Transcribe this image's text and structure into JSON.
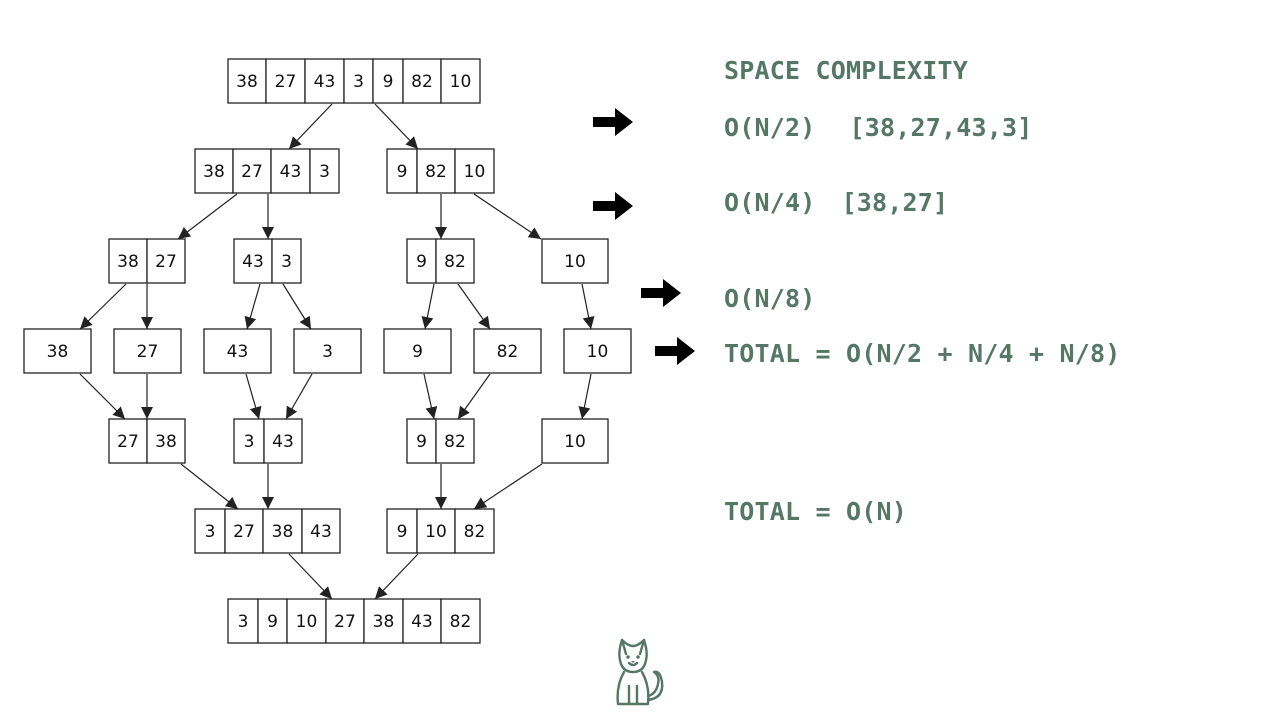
{
  "merge_sort_tree": {
    "rows": [
      {
        "nodes": [
          {
            "values": [
              "38",
              "27",
              "43",
              "3",
              "9",
              "82",
              "10"
            ]
          }
        ]
      },
      {
        "nodes": [
          {
            "values": [
              "38",
              "27",
              "43",
              "3"
            ]
          },
          {
            "values": [
              "9",
              "82",
              "10"
            ]
          }
        ]
      },
      {
        "nodes": [
          {
            "values": [
              "38",
              "27"
            ]
          },
          {
            "values": [
              "43",
              "3"
            ]
          },
          {
            "values": [
              "9",
              "82"
            ]
          },
          {
            "values": [
              "10"
            ]
          }
        ]
      },
      {
        "nodes": [
          {
            "values": [
              "38"
            ]
          },
          {
            "values": [
              "27"
            ]
          },
          {
            "values": [
              "43"
            ]
          },
          {
            "values": [
              "3"
            ]
          },
          {
            "values": [
              "9"
            ]
          },
          {
            "values": [
              "82"
            ]
          },
          {
            "values": [
              "10"
            ]
          }
        ]
      },
      {
        "nodes": [
          {
            "values": [
              "27",
              "38"
            ]
          },
          {
            "values": [
              "3",
              "43"
            ]
          },
          {
            "values": [
              "9",
              "82"
            ]
          },
          {
            "values": [
              "10"
            ]
          }
        ]
      },
      {
        "nodes": [
          {
            "values": [
              "3",
              "27",
              "38",
              "43"
            ]
          },
          {
            "values": [
              "9",
              "10",
              "82"
            ]
          }
        ]
      },
      {
        "nodes": [
          {
            "values": [
              "3",
              "9",
              "10",
              "27",
              "38",
              "43",
              "82"
            ]
          }
        ]
      }
    ]
  },
  "notes": {
    "title": "SPACE COMPLEXITY",
    "line1": {
      "complexity": "O(N/2)",
      "example": "[38,27,43,3]"
    },
    "line2": {
      "complexity": "O(N/4)",
      "example": "[38,27]"
    },
    "line3": {
      "complexity": "O(N/8)"
    },
    "total_sum": "TOTAL = O(N/2 + N/4 + N/8)",
    "total_final": "TOTAL = O(N)"
  },
  "icons": {
    "arrow": "right-arrow-icon",
    "mascot": "cat-icon"
  },
  "colors": {
    "text_accent": "#557766",
    "line": "#222222"
  }
}
